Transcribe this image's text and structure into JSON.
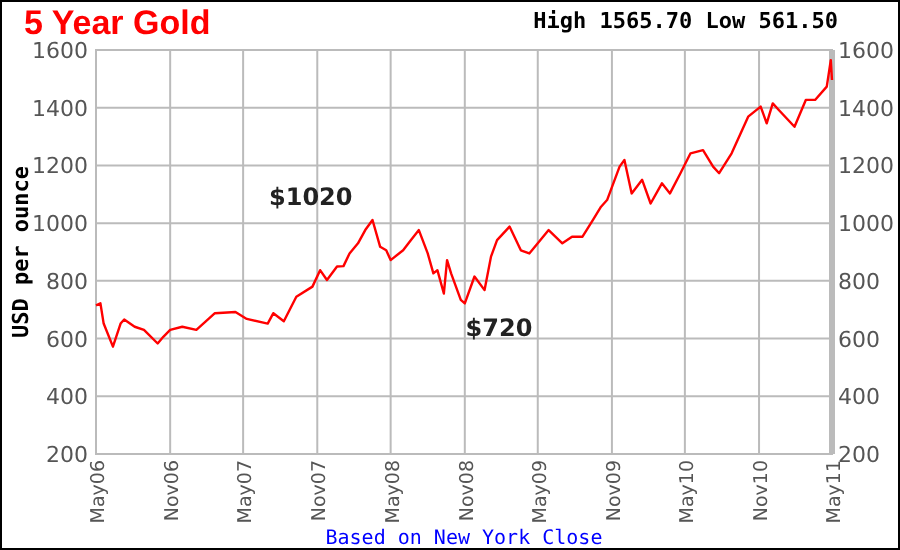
{
  "chart_data": {
    "type": "line",
    "title": "5 Year Gold",
    "ylabel": "USD per ounce",
    "annotations": [
      "High 1565.70 Low 561.50",
      "Based on New York Close",
      {
        "text": "$1020",
        "x": "2008-03-17",
        "y": 1020
      },
      {
        "text": "$720",
        "x": "2008-10-24",
        "y": 720
      }
    ],
    "series": [
      {
        "color": "#ff0000",
        "x": [
          "2006-05-01",
          "2006-05-12",
          "2006-05-20",
          "2006-06-12",
          "2006-07-01",
          "2006-07-10",
          "2006-08-05",
          "2006-08-28",
          "2006-10-01",
          "2006-10-15",
          "2006-11-01",
          "2006-12-01",
          "2007-01-05",
          "2007-02-20",
          "2007-04-12",
          "2007-05-10",
          "2007-07-01",
          "2007-07-15",
          "2007-08-10",
          "2007-09-10",
          "2007-10-20",
          "2007-11-08",
          "2007-11-25",
          "2007-12-20",
          "2008-01-05",
          "2008-01-20",
          "2008-02-10",
          "2008-02-28",
          "2008-03-17",
          "2008-04-05",
          "2008-04-20",
          "2008-05-01",
          "2008-06-01",
          "2008-06-20",
          "2008-07-10",
          "2008-08-01",
          "2008-08-15",
          "2008-08-25",
          "2008-09-10",
          "2008-09-18",
          "2008-09-28",
          "2008-10-22",
          "2008-11-01",
          "2008-11-25",
          "2008-12-20",
          "2009-01-05",
          "2009-01-20",
          "2009-02-20",
          "2009-03-20",
          "2009-04-10",
          "2009-05-01",
          "2009-05-28",
          "2009-07-01",
          "2009-07-25",
          "2009-08-20",
          "2009-09-15",
          "2009-10-05",
          "2009-10-20",
          "2009-11-20",
          "2009-12-02",
          "2009-12-20",
          "2010-01-15",
          "2010-02-05",
          "2010-03-05",
          "2010-03-25",
          "2010-04-20",
          "2010-05-15",
          "2010-06-15",
          "2010-07-10",
          "2010-07-25",
          "2010-08-25",
          "2010-10-05",
          "2010-11-05",
          "2010-11-20",
          "2010-12-05",
          "2010-12-20",
          "2011-01-28",
          "2011-02-25",
          "2011-03-20",
          "2011-04-18",
          "2011-04-28",
          "2011-05-01"
        ],
        "values": [
          715,
          722,
          652,
          572,
          652,
          666,
          641,
          630,
          583,
          606,
          630,
          641,
          630,
          688,
          692,
          668,
          652,
          688,
          660,
          745,
          780,
          837,
          803,
          850,
          851,
          895,
          930,
          976,
          1011,
          918,
          906,
          872,
          906,
          941,
          976,
          895,
          826,
          837,
          756,
          872,
          826,
          734,
          722,
          815,
          768,
          884,
          941,
          988,
          906,
          895,
          930,
          976,
          930,
          953,
          953,
          1011,
          1057,
          1080,
          1196,
          1219,
          1103,
          1150,
          1068,
          1138,
          1103,
          1173,
          1242,
          1253,
          1196,
          1173,
          1242,
          1369,
          1404,
          1346,
          1415,
          1392,
          1334,
          1427,
          1427,
          1473,
          1565,
          1496
        ]
      }
    ],
    "xlim": [
      "2006-05-01",
      "2011-05-01"
    ],
    "xticks": [
      {
        "value": "2006-05-01",
        "label": "May06"
      },
      {
        "value": "2006-11-01",
        "label": "Nov06"
      },
      {
        "value": "2007-05-01",
        "label": "May07"
      },
      {
        "value": "2007-11-01",
        "label": "Nov07"
      },
      {
        "value": "2008-05-01",
        "label": "May08"
      },
      {
        "value": "2008-11-01",
        "label": "Nov08"
      },
      {
        "value": "2009-05-01",
        "label": "May09"
      },
      {
        "value": "2009-11-01",
        "label": "Nov09"
      },
      {
        "value": "2010-05-01",
        "label": "May10"
      },
      {
        "value": "2010-11-01",
        "label": "Nov10"
      },
      {
        "value": "2011-05-01",
        "label": "May11"
      }
    ],
    "ylim": [
      200,
      1600
    ],
    "yticks": [
      200,
      400,
      600,
      800,
      1000,
      1200,
      1400,
      1600
    ],
    "y2lim": [
      200,
      1600
    ],
    "y2ticks": [
      200,
      400,
      600,
      800,
      1000,
      1200,
      1400,
      1600
    ],
    "grid": true
  }
}
